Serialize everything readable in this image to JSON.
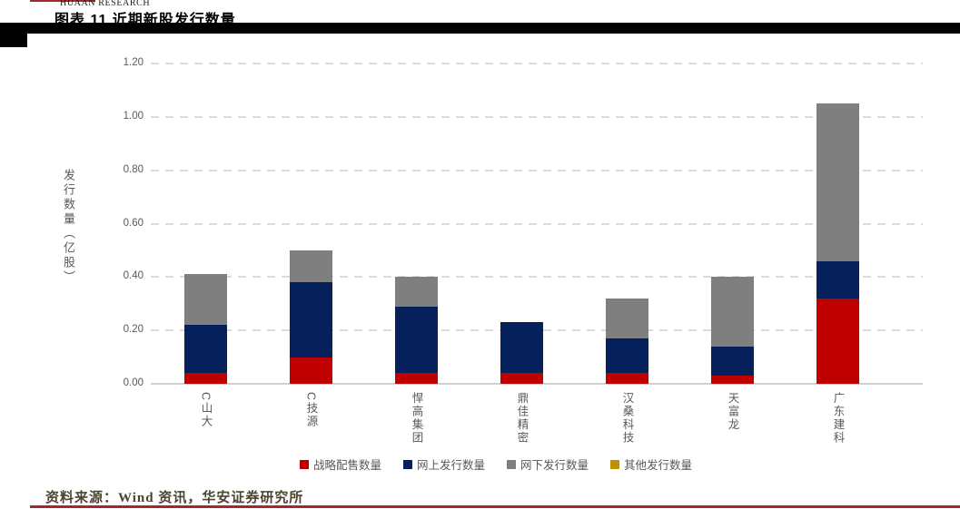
{
  "page": {
    "header": {
      "logo_caption": "HUAAN RESEARCH"
    },
    "title": "图表 11 近期新股发行数量",
    "source_note": "资料来源：Wind 资讯，华安证券研究所",
    "accent_red": "#A3282B"
  },
  "chart_data": {
    "type": "bar",
    "stacked": true,
    "title": "图表 11 近期新股发行数量",
    "ylabel": "发行数量（亿股）",
    "xlabel": "",
    "ylim": [
      0,
      1.2
    ],
    "yticks": [
      "0.00",
      "0.20",
      "0.40",
      "0.60",
      "0.80",
      "1.00",
      "1.20"
    ],
    "grid": "horizontal-dashed",
    "legend_position": "bottom",
    "categories": [
      "C山大",
      "C技源",
      "悍高集团",
      "鼎佳精密",
      "汉桑科技",
      "天富龙",
      "广东建科"
    ],
    "series": [
      {
        "name": "战略配售数量",
        "color": "#C00000",
        "values": [
          0.04,
          0.1,
          0.04,
          0.04,
          0.04,
          0.03,
          0.32
        ]
      },
      {
        "name": "网上发行数量",
        "color": "#05205A",
        "values": [
          0.18,
          0.28,
          0.25,
          0.19,
          0.13,
          0.11,
          0.14
        ]
      },
      {
        "name": "网下发行数量",
        "color": "#7F7F7F",
        "values": [
          0.19,
          0.12,
          0.11,
          0.0,
          0.15,
          0.26,
          0.59
        ]
      },
      {
        "name": "其他发行数量",
        "color": "#BF9000",
        "values": [
          0,
          0,
          0,
          0,
          0,
          0,
          0
        ]
      }
    ],
    "totals": [
      0.41,
      0.5,
      0.4,
      0.23,
      0.32,
      0.4,
      1.05
    ]
  }
}
